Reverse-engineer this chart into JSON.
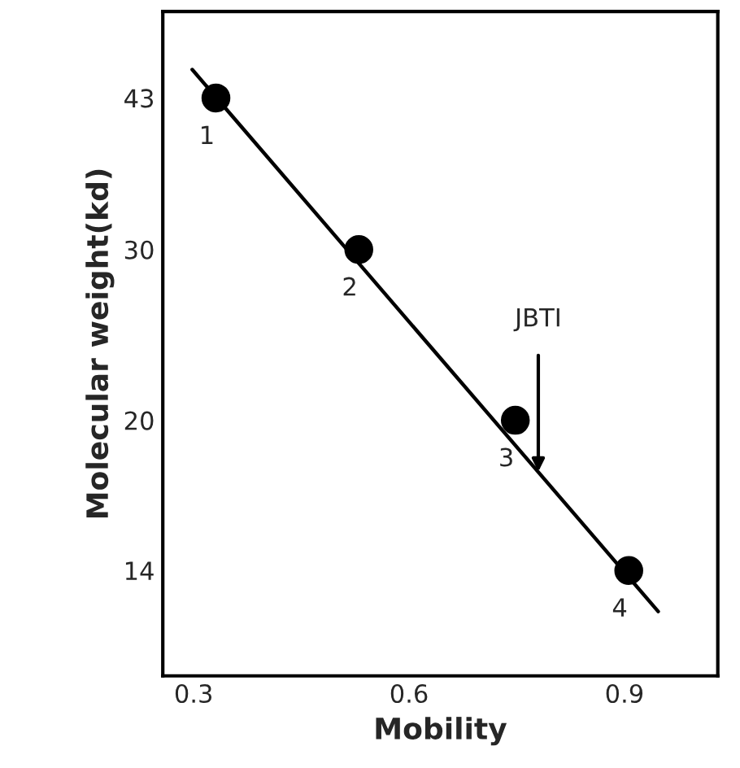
{
  "chart_data": {
    "type": "scatter",
    "xlabel": "Mobility",
    "ylabel": "Molecular weight(kd)",
    "log": "y",
    "xlim": [
      0.257,
      1.03
    ],
    "ylim": [
      10.9,
      52.8
    ],
    "xticks": [
      0.3,
      0.6,
      0.9
    ],
    "yticks": [
      14,
      20,
      30,
      43
    ],
    "grid": false,
    "legend": false,
    "marker": "circle",
    "series": [
      {
        "color": "#000000",
        "x": [
          0.331,
          0.53,
          0.748,
          0.906
        ],
        "values": [
          43,
          30,
          20,
          14
        ]
      },
      {
        "type": "line",
        "color": "#000000",
        "line_style": "solid",
        "marker": "none",
        "x": [
          0.298,
          0.947
        ],
        "values": [
          46.0,
          12.7
        ]
      }
    ],
    "annotations": [
      {
        "text": "1",
        "x": 0.331,
        "y": 43
      },
      {
        "text": "2",
        "x": 0.53,
        "y": 30
      },
      {
        "text": "3",
        "x": 0.748,
        "y": 20
      },
      {
        "text": "4",
        "x": 0.906,
        "y": 14
      },
      {
        "text": "JBTI",
        "x": 0.78,
        "y": 17.7
      }
    ]
  }
}
